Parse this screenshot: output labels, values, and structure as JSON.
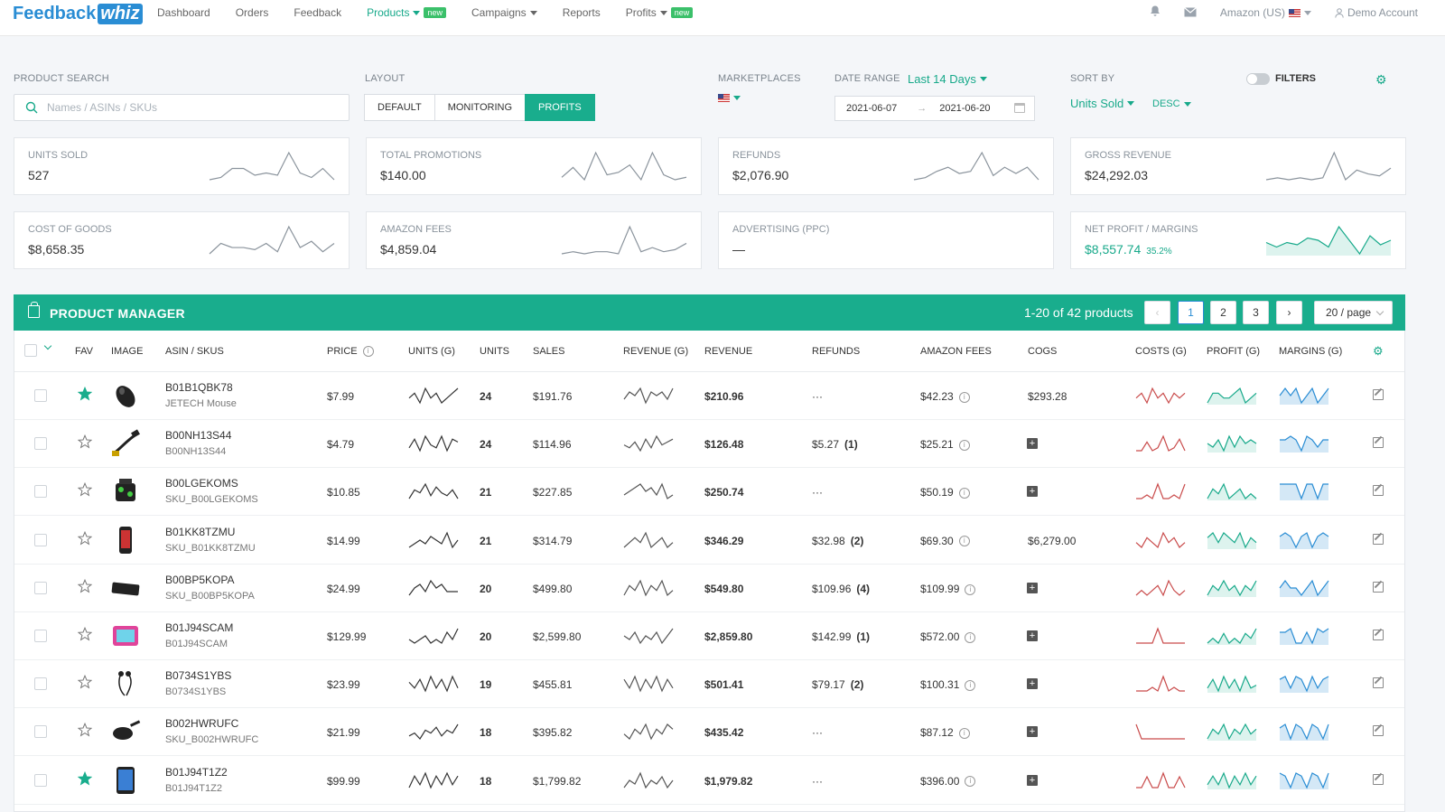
{
  "logo": {
    "part1": "Feedback",
    "part2": "whiz"
  },
  "nav": {
    "items": [
      {
        "label": "Dashboard",
        "active": false,
        "caret": false,
        "badge": ""
      },
      {
        "label": "Orders",
        "active": false,
        "caret": false,
        "badge": ""
      },
      {
        "label": "Feedback",
        "active": false,
        "caret": false,
        "badge": ""
      },
      {
        "label": "Products",
        "active": true,
        "caret": true,
        "badge": "new"
      },
      {
        "label": "Campaigns",
        "active": false,
        "caret": true,
        "badge": ""
      },
      {
        "label": "Reports",
        "active": false,
        "caret": false,
        "badge": ""
      },
      {
        "label": "Profits",
        "active": false,
        "caret": true,
        "badge": "new"
      }
    ],
    "marketplace": "Amazon (US)",
    "account": "Demo Account",
    "icons": [
      "bell-icon",
      "mail-icon",
      "user-icon"
    ]
  },
  "controls": {
    "product_search_label": "PRODUCT SEARCH",
    "search_placeholder": "Names / ASINs / SKUs",
    "layout_label": "LAYOUT",
    "layout_options": [
      "DEFAULT",
      "MONITORING",
      "PROFITS"
    ],
    "layout_active": "PROFITS",
    "marketplaces_label": "MARKETPLACES",
    "date_range_label": "DATE RANGE",
    "date_range_value": "Last 14 Days",
    "date_start": "2021-06-07",
    "date_end": "2021-06-20",
    "sort_by_label": "SORT BY",
    "sort_by_value": "Units Sold",
    "sort_dir": "DESC",
    "filters_label": "FILTERS",
    "filters_on": false
  },
  "stats": [
    {
      "label": "UNITS SOLD",
      "value": "527",
      "sub": ""
    },
    {
      "label": "TOTAL PROMOTIONS",
      "value": "$140.00",
      "sub": ""
    },
    {
      "label": "REFUNDS",
      "value": "$2,076.90",
      "sub": ""
    },
    {
      "label": "GROSS REVENUE",
      "value": "$24,292.03",
      "sub": ""
    },
    {
      "label": "COST OF GOODS",
      "value": "$8,658.35",
      "sub": ""
    },
    {
      "label": "AMAZON FEES",
      "value": "$4,859.04",
      "sub": ""
    },
    {
      "label": "ADVERTISING (PPC)",
      "value": "—",
      "sub": ""
    },
    {
      "label": "NET PROFIT / MARGINS",
      "value": "$8,557.74",
      "sub": "35.2%"
    }
  ],
  "product_manager": {
    "title": "PRODUCT MANAGER",
    "count": "1-20 of 42 products",
    "pages": [
      "1",
      "2",
      "3"
    ],
    "current_page": "1",
    "page_size": "20 / page",
    "columns": [
      "FAV",
      "IMAGE",
      "ASIN / SKUS",
      "PRICE",
      "UNITS (G)",
      "UNITS",
      "SALES",
      "REVENUE (G)",
      "REVENUE",
      "REFUNDS",
      "AMAZON FEES",
      "COGS",
      "COSTS (G)",
      "PROFIT (G)",
      "MARGINS (G)"
    ],
    "rows": [
      {
        "fav": true,
        "asin": "B01B1QBK78",
        "sku": "JETECH Mouse",
        "price": "$7.99",
        "units": "24",
        "sales": "$191.76",
        "revenue": "$210.96",
        "refunds": "···",
        "refund_count": "",
        "fees": "$42.23",
        "cogs": "$293.28",
        "img": "mouse"
      },
      {
        "fav": false,
        "asin": "B00NH13S44",
        "sku": "B00NH13S44",
        "price": "$4.79",
        "units": "24",
        "sales": "$114.96",
        "revenue": "$126.48",
        "refunds": "$5.27",
        "refund_count": "(1)",
        "fees": "$25.21",
        "cogs": "",
        "img": "cable"
      },
      {
        "fav": false,
        "asin": "B00LGEKOMS",
        "sku": "SKU_B00LGEKOMS",
        "price": "$10.85",
        "units": "21",
        "sales": "$227.85",
        "revenue": "$250.74",
        "refunds": "···",
        "refund_count": "",
        "fees": "$50.19",
        "cogs": "",
        "img": "robot"
      },
      {
        "fav": false,
        "asin": "B01KK8TZMU",
        "sku": "SKU_B01KK8TZMU",
        "price": "$14.99",
        "units": "21",
        "sales": "$314.79",
        "revenue": "$346.29",
        "refunds": "$32.98",
        "refund_count": "(2)",
        "fees": "$69.30",
        "cogs": "$6,279.00",
        "img": "phone"
      },
      {
        "fav": false,
        "asin": "B00BP5KOPA",
        "sku": "SKU_B00BP5KOPA",
        "price": "$24.99",
        "units": "20",
        "sales": "$499.80",
        "revenue": "$549.80",
        "refunds": "$109.96",
        "refund_count": "(4)",
        "fees": "$109.99",
        "cogs": "",
        "img": "keyboard"
      },
      {
        "fav": false,
        "asin": "B01J94SCAM",
        "sku": "B01J94SCAM",
        "price": "$129.99",
        "units": "20",
        "sales": "$2,599.80",
        "revenue": "$2,859.80",
        "refunds": "$142.99",
        "refund_count": "(1)",
        "fees": "$572.00",
        "cogs": "",
        "img": "tablet-pink"
      },
      {
        "fav": false,
        "asin": "B0734S1YBS",
        "sku": "B0734S1YBS",
        "price": "$23.99",
        "units": "19",
        "sales": "$455.81",
        "revenue": "$501.41",
        "refunds": "$79.17",
        "refund_count": "(2)",
        "fees": "$100.31",
        "cogs": "",
        "img": "earphones"
      },
      {
        "fav": false,
        "asin": "B002HWRUFC",
        "sku": "SKU_B002HWRUFC",
        "price": "$21.99",
        "units": "18",
        "sales": "$395.82",
        "revenue": "$435.42",
        "refunds": "···",
        "refund_count": "",
        "fees": "$87.12",
        "cogs": "",
        "img": "pan"
      },
      {
        "fav": true,
        "asin": "B01J94T1Z2",
        "sku": "B01J94T1Z2",
        "price": "$99.99",
        "units": "18",
        "sales": "$1,799.82",
        "revenue": "$1,979.82",
        "refunds": "···",
        "refund_count": "",
        "fees": "$396.00",
        "cogs": "",
        "img": "tablet-blue"
      }
    ]
  },
  "colors": {
    "accent": "#19ad8d",
    "link": "#2a8dd4",
    "cost_line": "#c94b4b",
    "profit_line": "#17a98a",
    "margin_line": "#2a8dd4"
  }
}
